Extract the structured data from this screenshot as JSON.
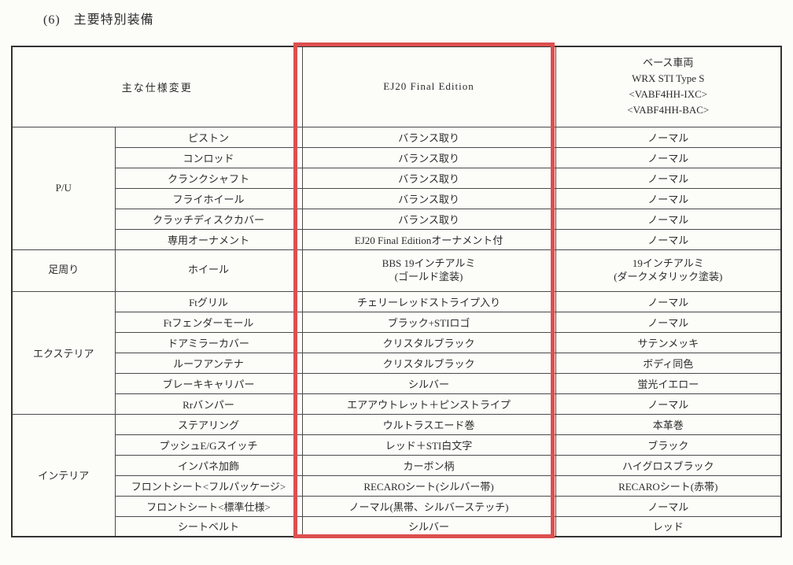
{
  "page_title": "(6)　主要特別装備",
  "accent_color": "#dd4f4f",
  "table": {
    "header": {
      "spec_change": "主な仕様変更",
      "edition": "EJ20 Final Edition",
      "base_lines": [
        "ベース車両",
        "WRX STI Type S",
        "<VABF4HH-IXC>",
        "<VABF4HH-BAC>"
      ]
    },
    "groups": [
      {
        "category": "P/U",
        "rows": [
          {
            "item": "ピストン",
            "edition": "バランス取り",
            "base": "ノーマル"
          },
          {
            "item": "コンロッド",
            "edition": "バランス取り",
            "base": "ノーマル"
          },
          {
            "item": "クランクシャフト",
            "edition": "バランス取り",
            "base": "ノーマル"
          },
          {
            "item": "フライホイール",
            "edition": "バランス取り",
            "base": "ノーマル"
          },
          {
            "item": "クラッチディスクカバー",
            "edition": "バランス取り",
            "base": "ノーマル"
          },
          {
            "item": "専用オーナメント",
            "edition": "EJ20 Final Editionオーナメント付",
            "base": "ノーマル"
          }
        ]
      },
      {
        "category": "足周り",
        "rows": [
          {
            "item": "ホイール",
            "edition": "BBS 19インチアルミ\n(ゴールド塗装)",
            "base": "19インチアルミ\n(ダークメタリック塗装)",
            "tall": true
          }
        ]
      },
      {
        "category": "エクステリア",
        "rows": [
          {
            "item": "Ftグリル",
            "edition": "チェリーレッドストライプ入り",
            "base": "ノーマル"
          },
          {
            "item": "Ftフェンダーモール",
            "edition": "ブラック+STIロゴ",
            "base": "ノーマル"
          },
          {
            "item": "ドアミラーカバー",
            "edition": "クリスタルブラック",
            "base": "サテンメッキ"
          },
          {
            "item": "ルーフアンテナ",
            "edition": "クリスタルブラック",
            "base": "ボディ同色"
          },
          {
            "item": "ブレーキキャリパー",
            "edition": "シルバー",
            "base": "蛍光イエロー"
          },
          {
            "item": "Rrバンパー",
            "edition": "エアアウトレット＋ピンストライプ",
            "base": "ノーマル"
          }
        ]
      },
      {
        "category": "インテリア",
        "rows": [
          {
            "item": "ステアリング",
            "edition": "ウルトラスエード巻",
            "base": "本革巻"
          },
          {
            "item": "プッシュE/Gスイッチ",
            "edition": "レッド＋STI白文字",
            "base": "ブラック"
          },
          {
            "item": "インパネ加飾",
            "edition": "カーボン柄",
            "base": "ハイグロスブラック"
          },
          {
            "item": "フロントシート<フルパッケージ>",
            "edition": "RECAROシート(シルバー帯)",
            "base": "RECAROシート(赤帯)"
          },
          {
            "item": "フロントシート<標準仕様>",
            "edition": "ノーマル(黒帯、シルバーステッチ)",
            "base": "ノーマル"
          },
          {
            "item": "シートベルト",
            "edition": "シルバー",
            "base": "レッド"
          }
        ]
      }
    ]
  }
}
